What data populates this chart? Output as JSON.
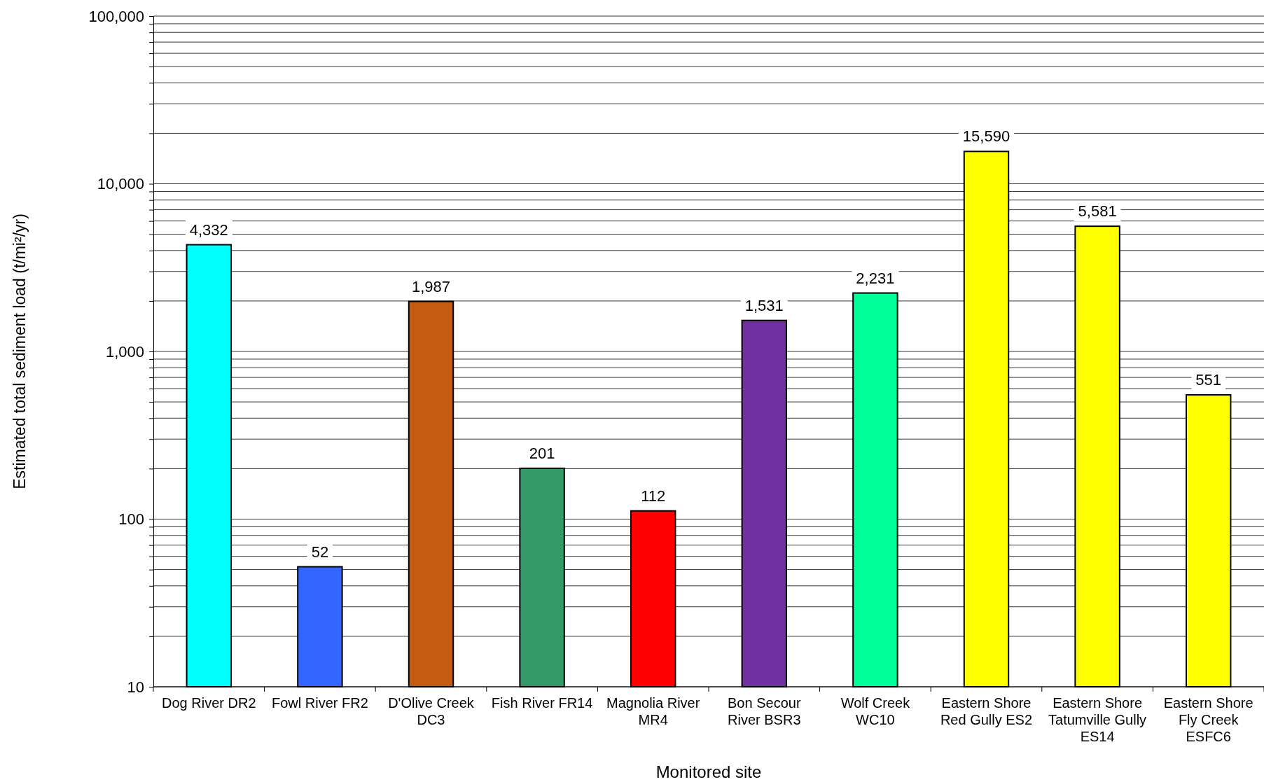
{
  "chart_data": {
    "type": "bar",
    "xlabel": "Monitored site",
    "ylabel": "Estimated total sediment load (t/mi²/yr)",
    "categories": [
      "Dog River DR2",
      "Fowl River FR2",
      "D'Olive Creek DC3",
      "Fish River FR14",
      "Magnolia River MR4",
      "Bon Secour River BSR3",
      "Wolf Creek WC10",
      "Eastern Shore Red Gully ES2",
      "Eastern Shore Tatumville Gully ES14",
      "Eastern Shore Fly Creek ESFC6"
    ],
    "values": [
      4332,
      52,
      1987,
      201,
      112,
      1531,
      2231,
      15590,
      5581,
      551
    ],
    "value_labels": [
      "4,332",
      "52",
      "1,987",
      "201",
      "112",
      "1,531",
      "2,231",
      "15,590",
      "5,581",
      "551"
    ],
    "colors": [
      "#00ffff",
      "#3366ff",
      "#c55a11",
      "#339966",
      "#ff0000",
      "#7030a0",
      "#00ff99",
      "#ffff00",
      "#ffff00",
      "#ffff00"
    ],
    "log": true,
    "ylim": [
      10,
      100000
    ],
    "yticks": [
      {
        "value": 10,
        "label": "10"
      },
      {
        "value": 20,
        "label": null
      },
      {
        "value": 30,
        "label": null
      },
      {
        "value": 40,
        "label": null
      },
      {
        "value": 50,
        "label": null
      },
      {
        "value": 60,
        "label": null
      },
      {
        "value": 70,
        "label": null
      },
      {
        "value": 80,
        "label": null
      },
      {
        "value": 90,
        "label": null
      },
      {
        "value": 100,
        "label": "100"
      },
      {
        "value": 200,
        "label": null
      },
      {
        "value": 300,
        "label": null
      },
      {
        "value": 400,
        "label": null
      },
      {
        "value": 500,
        "label": null
      },
      {
        "value": 600,
        "label": null
      },
      {
        "value": 700,
        "label": null
      },
      {
        "value": 800,
        "label": null
      },
      {
        "value": 900,
        "label": null
      },
      {
        "value": 1000,
        "label": "1,000"
      },
      {
        "value": 2000,
        "label": null
      },
      {
        "value": 3000,
        "label": null
      },
      {
        "value": 4000,
        "label": null
      },
      {
        "value": 5000,
        "label": null
      },
      {
        "value": 6000,
        "label": null
      },
      {
        "value": 7000,
        "label": null
      },
      {
        "value": 8000,
        "label": null
      },
      {
        "value": 9000,
        "label": null
      },
      {
        "value": 10000,
        "label": "10,000"
      },
      {
        "value": 20000,
        "label": null
      },
      {
        "value": 30000,
        "label": null
      },
      {
        "value": 40000,
        "label": null
      },
      {
        "value": 50000,
        "label": null
      },
      {
        "value": 60000,
        "label": null
      },
      {
        "value": 70000,
        "label": null
      },
      {
        "value": 80000,
        "label": null
      },
      {
        "value": 90000,
        "label": null
      },
      {
        "value": 100000,
        "label": "100,000"
      }
    ],
    "grid": "y"
  }
}
